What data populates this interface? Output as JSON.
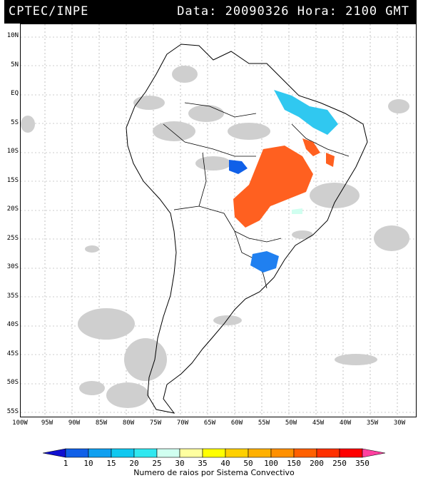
{
  "header": {
    "source": "CPTEC/INPE",
    "datetime": "Data: 20090326 Hora: 2100 GMT"
  },
  "map": {
    "lat_labels": [
      "10N",
      "5N",
      "EQ",
      "5S",
      "10S",
      "15S",
      "20S",
      "25S",
      "30S",
      "35S",
      "40S",
      "45S",
      "50S",
      "55S"
    ],
    "lon_labels": [
      "100W",
      "95W",
      "90W",
      "85W",
      "80W",
      "75W",
      "70W",
      "65W",
      "60W",
      "55W",
      "50W",
      "45W",
      "40W",
      "35W",
      "30W"
    ]
  },
  "legend": {
    "labels": [
      "1",
      "10",
      "15",
      "20",
      "25",
      "30",
      "35",
      "40",
      "50",
      "100",
      "150",
      "200",
      "250",
      "350"
    ],
    "colors": [
      "#1010d0",
      "#1060e8",
      "#10a0f0",
      "#10c8f0",
      "#30e8f0",
      "#d0fff0",
      "#ffffa0",
      "#ffff00",
      "#ffd000",
      "#ffb000",
      "#ff9000",
      "#ff6000",
      "#ff3000",
      "#ff0000",
      "#ff40a0"
    ],
    "caption": "Numero de raios por Sistema Convectivo"
  }
}
